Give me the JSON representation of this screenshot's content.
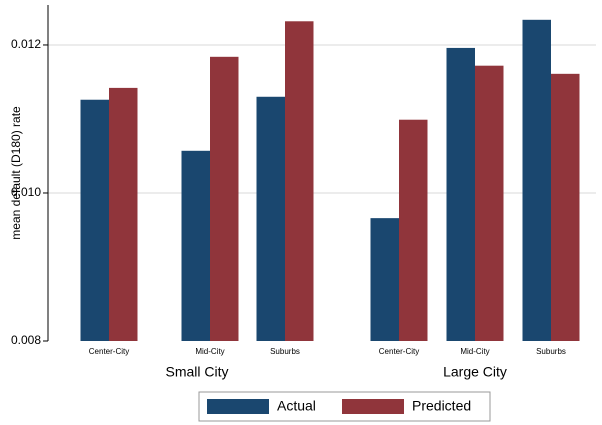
{
  "chart_data": {
    "type": "bar",
    "ylabel": "mean default (D180) rate",
    "ylim": [
      0.008,
      0.01254
    ],
    "yticks": [
      0.008,
      {
        "value": 0.01,
        "label": "0.010"
      },
      0.012
    ],
    "grid": true,
    "legend": "bottom",
    "series": [
      {
        "name": "Actual",
        "color": "#1a476f"
      },
      {
        "name": "Predicted",
        "color": "#90353b"
      }
    ],
    "groups": [
      {
        "name": "Small City",
        "categories": [
          "Center-City",
          "Mid-City",
          "Suburbs"
        ],
        "values": [
          [
            0.01126,
            0.01057,
            0.0113
          ],
          [
            0.01142,
            0.01184,
            0.01232
          ]
        ]
      },
      {
        "name": "Large City",
        "categories": [
          "Center-City",
          "Mid-City",
          "Suburbs"
        ],
        "values": [
          [
            0.00966,
            0.01196,
            0.01234
          ],
          [
            0.01099,
            0.01172,
            0.01161
          ]
        ]
      }
    ]
  }
}
